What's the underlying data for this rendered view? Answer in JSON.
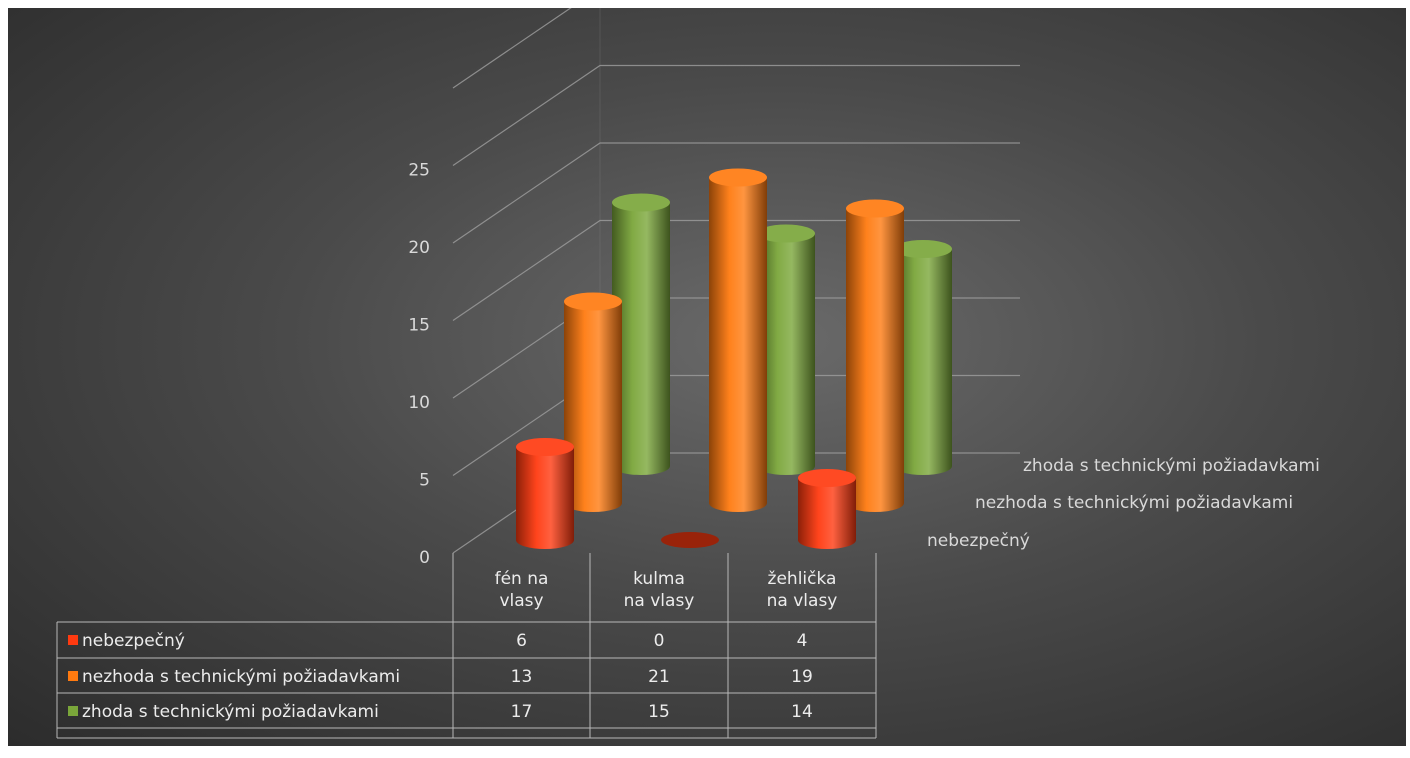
{
  "chart_data": {
    "type": "bar",
    "variant": "3d-cylinder-with-data-table",
    "categories": [
      "fén na\nvlasy",
      "kulma\nna vlasy",
      "žehlička\nna vlasy"
    ],
    "series": [
      {
        "name": "nebezpečný",
        "values": [
          6,
          0,
          4
        ],
        "color": "#ff3a10"
      },
      {
        "name": "nezhoda s technickými požiadavkami",
        "values": [
          13,
          21,
          19
        ],
        "color": "#ff7a10"
      },
      {
        "name": "zhoda s technickými požiadavkami",
        "values": [
          17,
          15,
          14
        ],
        "color": "#7aa63a"
      }
    ],
    "y_ticks": [
      "0",
      "5",
      "10",
      "15",
      "20",
      "25"
    ],
    "ylim": [
      0,
      25
    ],
    "gridlines": true,
    "legend": "data-table"
  }
}
